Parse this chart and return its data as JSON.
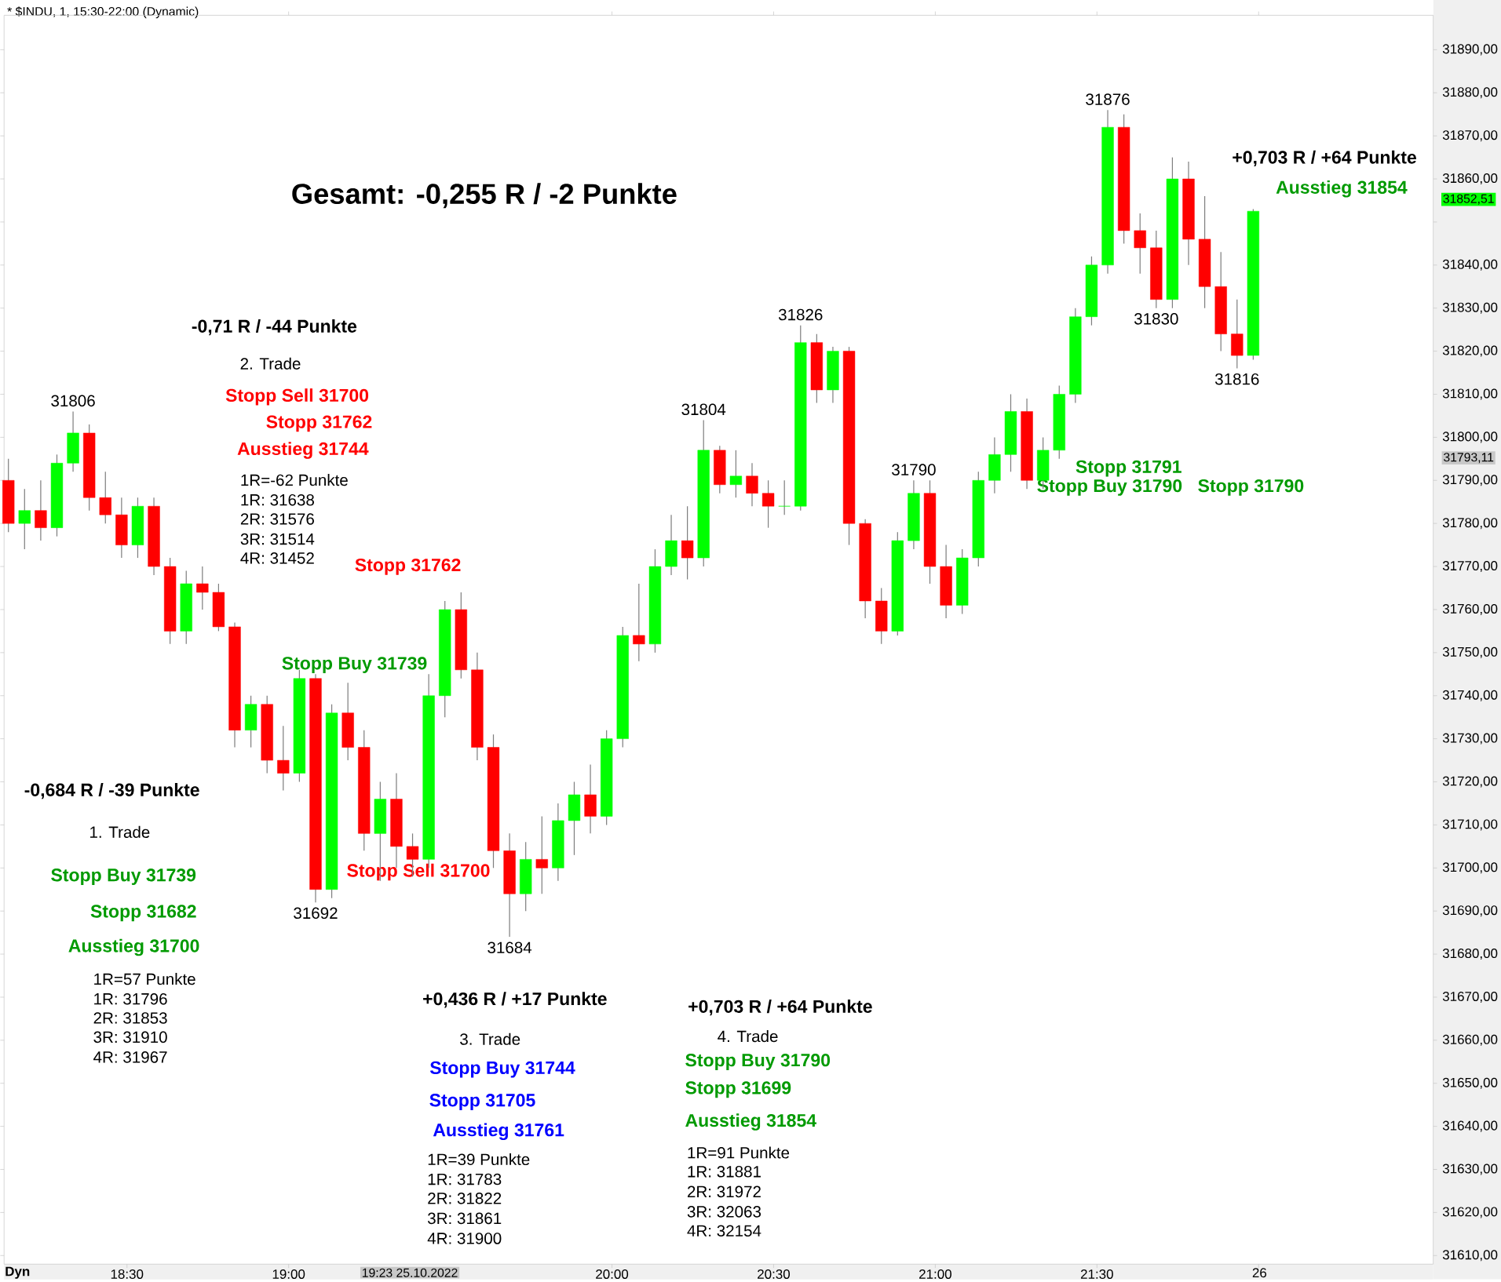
{
  "chart_data": {
    "type": "candlestick",
    "title": "* $INDU, 1, 15:30-22:00 (Dynamic)",
    "colors": [
      "#ff0000",
      "#00ff00",
      "#ff0000",
      "#00ff00",
      "#00ff00",
      "#ff0000",
      "#ff0000",
      "#ff0000",
      "#00ff00",
      "#ff0000",
      "#ff0000",
      "#00ff00",
      "#ff0000",
      "#ff0000",
      "#ff0000",
      "#00ff00",
      "#ff0000",
      "#ff0000",
      "#00ff00",
      "#ff0000",
      "#00ff00",
      "#ff0000",
      "#ff0000",
      "#00ff00",
      "#ff0000",
      "#ff0000",
      "#00ff00",
      "#00ff00",
      "#ff0000",
      "#ff0000",
      "#ff0000",
      "#ff0000",
      "#00ff00",
      "#ff0000",
      "#00ff00",
      "#00ff00",
      "#ff0000",
      "#00ff00",
      "#00ff00",
      "#ff0000",
      "#00ff00",
      "#00ff00",
      "#ff0000",
      "#00ff00",
      "#ff0000",
      "#00ff00",
      "#ff0000",
      "#ff0000",
      "#00ff00",
      "#00ff00",
      "#ff0000",
      "#00ff00",
      "#ff0000",
      "#ff0000",
      "#ff0000",
      "#00ff00",
      "#00ff00",
      "#ff0000",
      "#ff0000",
      "#00ff00",
      "#00ff00",
      "#00ff00",
      "#00ff00",
      "#ff0000",
      "#00ff00",
      "#00ff00",
      "#00ff00",
      "#00ff00",
      "#00ff00",
      "#ff0000",
      "#ff0000",
      "#ff0000",
      "#00ff00",
      "#ff0000",
      "#ff0000",
      "#ff0000",
      "#ff0000",
      "#00ff00"
    ],
    "x": [
      18.1333,
      18.1833,
      18.2333,
      18.2833,
      18.3333,
      18.3833,
      18.4333,
      18.4833,
      18.5333,
      18.5833,
      18.6333,
      18.6833,
      18.7333,
      18.7833,
      18.8333,
      18.8833,
      18.9333,
      18.9833,
      19.0333,
      19.0833,
      19.1333,
      19.1833,
      19.2333,
      19.2833,
      19.3333,
      19.3833,
      19.4333,
      19.4833,
      19.5333,
      19.5833,
      19.6333,
      19.6833,
      19.7333,
      19.7833,
      19.8333,
      19.8833,
      19.9333,
      19.9833,
      20.0333,
      20.0833,
      20.1333,
      20.1833,
      20.2333,
      20.2833,
      20.3333,
      20.3833,
      20.4333,
      20.4833,
      20.5333,
      20.5833,
      20.6333,
      20.6833,
      20.7333,
      20.7833,
      20.8333,
      20.8833,
      20.9333,
      20.9833,
      21.0333,
      21.0833,
      21.1333,
      21.1833,
      21.2333,
      21.2833,
      21.3333,
      21.3833,
      21.4333,
      21.4833,
      21.5333,
      21.5833,
      21.6333,
      21.6833,
      21.7333,
      21.7833,
      21.8333,
      21.8833,
      21.9333,
      21.9833
    ],
    "ohlc": [
      [
        31790,
        31795,
        31778,
        31780
      ],
      [
        31780,
        31788,
        31774,
        31783
      ],
      [
        31783,
        31790,
        31776,
        31779
      ],
      [
        31779,
        31796,
        31777,
        31794
      ],
      [
        31794,
        31806,
        31792,
        31801
      ],
      [
        31801,
        31803,
        31783,
        31786
      ],
      [
        31786,
        31792,
        31780,
        31782
      ],
      [
        31782,
        31786,
        31772,
        31775
      ],
      [
        31775,
        31786,
        31772,
        31784
      ],
      [
        31784,
        31786,
        31768,
        31770
      ],
      [
        31770,
        31772,
        31752,
        31755
      ],
      [
        31755,
        31769,
        31752,
        31766
      ],
      [
        31766,
        31770,
        31760,
        31764
      ],
      [
        31764,
        31766,
        31755,
        31756
      ],
      [
        31756,
        31757,
        31728,
        31732
      ],
      [
        31732,
        31740,
        31728,
        31738
      ],
      [
        31738,
        31740,
        31722,
        31725
      ],
      [
        31725,
        31733,
        31718,
        31722
      ],
      [
        31722,
        31746,
        31720,
        31744
      ],
      [
        31744,
        31745,
        31692,
        31695
      ],
      [
        31695,
        31738,
        31693,
        31736
      ],
      [
        31736,
        31743,
        31725,
        31728
      ],
      [
        31728,
        31732,
        31704,
        31708
      ],
      [
        31708,
        31720,
        31697,
        31716
      ],
      [
        31716,
        31722,
        31700,
        31705
      ],
      [
        31705,
        31708,
        31698,
        31702
      ],
      [
        31702,
        31745,
        31700,
        31740
      ],
      [
        31740,
        31762,
        31735,
        31760
      ],
      [
        31760,
        31764,
        31744,
        31746
      ],
      [
        31746,
        31750,
        31725,
        31728
      ],
      [
        31728,
        31731,
        31700,
        31704
      ],
      [
        31704,
        31708,
        31684,
        31694
      ],
      [
        31694,
        31706,
        31690,
        31702
      ],
      [
        31702,
        31712,
        31694,
        31700
      ],
      [
        31700,
        31715,
        31697,
        31711
      ],
      [
        31711,
        31720,
        31703,
        31717
      ],
      [
        31717,
        31724,
        31708,
        31712
      ],
      [
        31712,
        31732,
        31710,
        31730
      ],
      [
        31730,
        31756,
        31728,
        31754
      ],
      [
        31754,
        31766,
        31748,
        31752
      ],
      [
        31752,
        31774,
        31750,
        31770
      ],
      [
        31770,
        31782,
        31768,
        31776
      ],
      [
        31776,
        31784,
        31767,
        31772
      ],
      [
        31772,
        31804,
        31770,
        31797
      ],
      [
        31797,
        31798,
        31787,
        31789
      ],
      [
        31789,
        31797,
        31786,
        31791
      ],
      [
        31791,
        31794,
        31784,
        31787
      ],
      [
        31787,
        31790,
        31779,
        31784
      ],
      [
        31784,
        31790,
        31782,
        31784
      ],
      [
        31784,
        31826,
        31783,
        31822
      ],
      [
        31822,
        31824,
        31808,
        31811
      ],
      [
        31811,
        31821,
        31808,
        31820
      ],
      [
        31820,
        31821,
        31775,
        31780
      ],
      [
        31780,
        31781,
        31758,
        31762
      ],
      [
        31762,
        31765,
        31752,
        31755
      ],
      [
        31755,
        31778,
        31754,
        31776
      ],
      [
        31776,
        31790,
        31774,
        31787
      ],
      [
        31787,
        31790,
        31766,
        31770
      ],
      [
        31770,
        31775,
        31758,
        31761
      ],
      [
        31761,
        31774,
        31759,
        31772
      ],
      [
        31772,
        31792,
        31770,
        31790
      ],
      [
        31790,
        31800,
        31787,
        31796
      ],
      [
        31796,
        31810,
        31792,
        31806
      ],
      [
        31806,
        31809,
        31788,
        31790
      ],
      [
        31790,
        31800,
        31788,
        31797
      ],
      [
        31797,
        31812,
        31795,
        31810
      ],
      [
        31810,
        31830,
        31808,
        31828
      ],
      [
        31828,
        31842,
        31826,
        31840
      ],
      [
        31840,
        31876,
        31838,
        31872
      ],
      [
        31872,
        31875,
        31845,
        31848
      ],
      [
        31848,
        31852,
        31838,
        31844
      ],
      [
        31844,
        31848,
        31830,
        31832
      ],
      [
        31832,
        31865,
        31830,
        31860
      ],
      [
        31860,
        31864,
        31840,
        31846
      ],
      [
        31846,
        31856,
        31830,
        31835
      ],
      [
        31835,
        31843,
        31820,
        31824
      ],
      [
        31824,
        31832,
        31816,
        31819
      ],
      [
        31819,
        31853,
        31818,
        31852.51
      ]
    ],
    "xlim": [
      18.12,
      22.54
    ],
    "ylim": [
      31608,
      31898
    ],
    "xticks": [
      {
        "value": 18.5,
        "label": "18:30"
      },
      {
        "value": 19,
        "label": "19:00"
      },
      {
        "value": 20,
        "label": "20:00"
      },
      {
        "value": 20.5,
        "label": "20:30"
      },
      {
        "value": 21,
        "label": "21:00"
      },
      {
        "value": 21.5,
        "label": "21:30"
      },
      {
        "value": 22,
        "label": null
      }
    ],
    "yticks": [
      {
        "value": 31610,
        "label": "31610,00"
      },
      {
        "value": 31620,
        "label": "31620,00"
      },
      {
        "value": 31630,
        "label": "31630,00"
      },
      {
        "value": 31640,
        "label": "31640,00"
      },
      {
        "value": 31650,
        "label": "31650,00"
      },
      {
        "value": 31660,
        "label": "31660,00"
      },
      {
        "value": 31670,
        "label": "31670,00"
      },
      {
        "value": 31680,
        "label": "31680,00"
      },
      {
        "value": 31690,
        "label": "31690,00"
      },
      {
        "value": 31700,
        "label": "31700,00"
      },
      {
        "value": 31710,
        "label": "31710,00"
      },
      {
        "value": 31720,
        "label": "31720,00"
      },
      {
        "value": 31730,
        "label": "31730,00"
      },
      {
        "value": 31740,
        "label": "31740,00"
      },
      {
        "value": 31750,
        "label": "31750,00"
      },
      {
        "value": 31760,
        "label": "31760,00"
      },
      {
        "value": 31770,
        "label": "31770,00"
      },
      {
        "value": 31780,
        "label": "31780,00"
      },
      {
        "value": 31790,
        "label": "31790,00"
      },
      {
        "value": 31800,
        "label": "31800,00"
      },
      {
        "value": 31810,
        "label": "31810,00"
      },
      {
        "value": 31820,
        "label": "31820,00"
      },
      {
        "value": 31830,
        "label": "31830,00"
      },
      {
        "value": 31840,
        "label": "31840,00"
      },
      {
        "value": 31850,
        "label": null
      },
      {
        "value": 31860,
        "label": "31860,00"
      },
      {
        "value": 31870,
        "label": "31870,00"
      },
      {
        "value": 31880,
        "label": "31880,00"
      },
      {
        "value": 31890,
        "label": "31890,00"
      }
    ],
    "annotations": [
      "Gesamt: -0,255 R / -2 Punkte",
      "-0,71 R / -44 Punkte",
      "2. Trade",
      "Stopp Sell 31700",
      "Stopp 31762",
      "Ausstieg 31744",
      "1R=-62 Punkte",
      "1R: 31638",
      "2R: 31576",
      "3R: 31514",
      "4R: 31452",
      "Stopp 31762",
      "Stopp Buy 31739",
      "Stopp Sell 31700",
      "-0,684 R / -39 Punkte",
      "1. Trade",
      "Stopp Buy 31739",
      "Stopp 31682",
      "Ausstieg 31700",
      "1R=57 Punkte",
      "1R: 31796",
      "2R: 31853",
      "3R: 31910",
      "4R: 31967",
      "+0,436 R / +17 Punkte",
      "3. Trade",
      "Stopp Buy 31744",
      "Stopp 31705",
      "Ausstieg 31761",
      "1R=39 Punkte",
      "1R: 31783",
      "2R: 31822",
      "3R: 31861",
      "4R: 31900",
      "+0,703 R / +64 Punkte",
      "4. Trade",
      "Stopp Buy 31790",
      "Stopp 31699",
      "Ausstieg 31854",
      "1R=91 Punkte",
      "1R: 31881",
      "2R: 31972",
      "3R: 32063",
      "4R: 32154",
      "Stopp 31791",
      "Stopp Buy 31790",
      "Stopp 31790",
      "+0,703 R / +64 Punkte",
      "Ausstieg 31854",
      "19:23 25.10.2022",
      "Dyn",
      "26",
      "31852,51",
      "31793,11",
      {
        "text": "31806",
        "x": 18.3333,
        "y": 31806
      },
      {
        "text": "31692",
        "x": 19.0833,
        "y": 31692
      },
      {
        "text": "31684",
        "x": 19.6833,
        "y": 31684
      },
      {
        "text": "31804",
        "x": 20.2833,
        "y": 31804
      },
      {
        "text": "31826",
        "x": 20.5833,
        "y": 31826
      },
      {
        "text": "31790",
        "x": 20.9333,
        "y": 31790
      },
      {
        "text": "31876",
        "x": 21.5333,
        "y": 31876
      },
      {
        "text": "31830",
        "x": 21.6833,
        "y": 31830
      },
      {
        "text": "31816",
        "x": 21.9333,
        "y": 31816
      }
    ]
  }
}
